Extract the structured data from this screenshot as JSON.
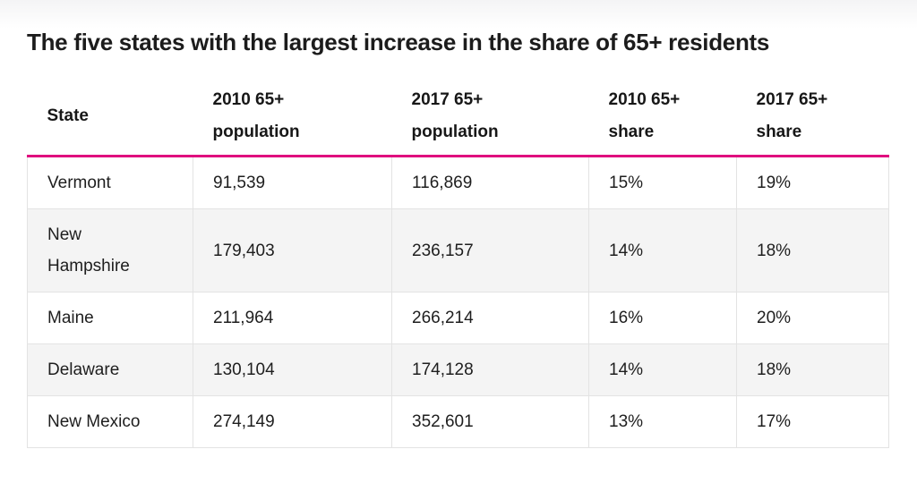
{
  "page": {
    "title": "The five states with the largest increase in the share of 65+ residents"
  },
  "colors": {
    "accent_rule": "#e00d7e",
    "alt_row_bg": "#f4f4f4",
    "cell_border": "#e3e3e3",
    "text": "#1e1e1e"
  },
  "chart_data": {
    "type": "table",
    "title": "The five states with the largest increase in the share of 65+ residents",
    "columns": [
      "State",
      "2010 65+ population",
      "2017 65+ population",
      "2010 65+ share",
      "2017 65+ share"
    ],
    "rows": [
      [
        "Vermont",
        "91,539",
        "116,869",
        "15%",
        "19%"
      ],
      [
        "New Hampshire",
        "179,403",
        "236,157",
        "14%",
        "18%"
      ],
      [
        "Maine",
        "211,964",
        "266,214",
        "16%",
        "20%"
      ],
      [
        "Delaware",
        "130,104",
        "174,128",
        "14%",
        "18%"
      ],
      [
        "New Mexico",
        "274,149",
        "352,601",
        "13%",
        "17%"
      ]
    ]
  }
}
